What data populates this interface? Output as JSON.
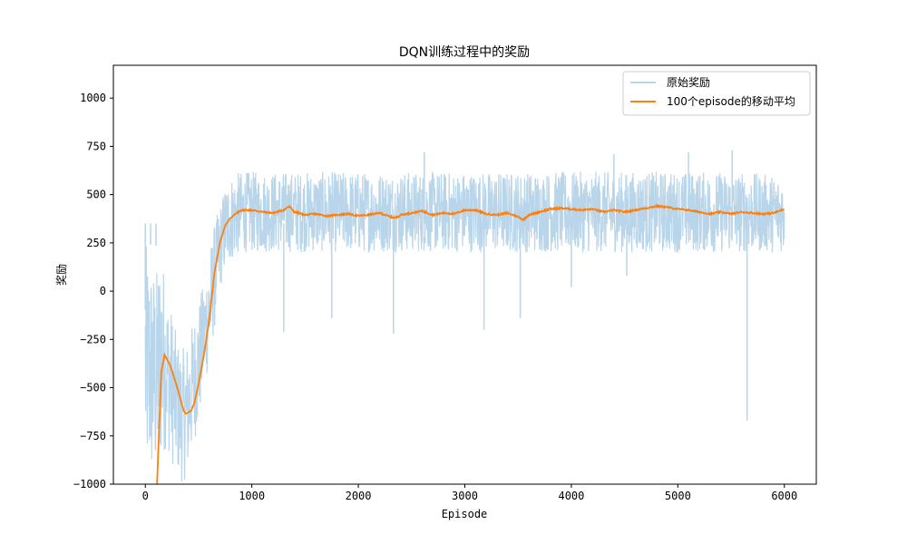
{
  "chart_data": {
    "type": "line",
    "title": "DQN训练过程中的奖励",
    "xlabel": "Episode",
    "ylabel": "奖励",
    "xlim": [
      -300,
      6300
    ],
    "ylim": [
      -1000,
      1170
    ],
    "xticks": [
      0,
      1000,
      2000,
      3000,
      4000,
      5000,
      6000
    ],
    "yticks": [
      -1000,
      -750,
      -500,
      -250,
      0,
      250,
      500,
      750,
      1000
    ],
    "xtick_labels": [
      "0",
      "1000",
      "2000",
      "3000",
      "4000",
      "5000",
      "6000"
    ],
    "ytick_labels": [
      "−1000",
      "−750",
      "−500",
      "−250",
      "0",
      "250",
      "500",
      "750",
      "1000"
    ],
    "legend_position": "upper right",
    "series": [
      {
        "name": "原始奖励",
        "color": "#b9d5ea",
        "description_note": "noisy per-episode reward",
        "x": [
          0,
          100,
          150,
          200,
          250,
          300,
          350,
          400,
          450,
          500,
          550,
          600,
          650,
          700,
          750,
          800,
          900,
          1000,
          1500,
          2000,
          2500,
          3000,
          3500,
          4000,
          4500,
          5000,
          5500,
          6000
        ],
        "band_low": [
          -1000,
          -1000,
          -900,
          -800,
          -900,
          -950,
          -1000,
          -950,
          -800,
          -700,
          -500,
          -400,
          -200,
          0,
          100,
          150,
          200,
          200,
          200,
          200,
          200,
          200,
          200,
          200,
          200,
          200,
          200,
          200
        ],
        "band_high": [
          250,
          100,
          250,
          0,
          -100,
          -250,
          -300,
          -250,
          -150,
          -50,
          50,
          200,
          350,
          450,
          550,
          600,
          620,
          620,
          620,
          620,
          620,
          620,
          620,
          620,
          620,
          620,
          620,
          600
        ],
        "spikes": [
          {
            "x": 0,
            "y": -100
          },
          {
            "x": 50,
            "y": 240
          },
          {
            "x": 100,
            "y": 235
          },
          {
            "x": 1300,
            "y": -210
          },
          {
            "x": 1750,
            "y": -140
          },
          {
            "x": 2330,
            "y": -220
          },
          {
            "x": 3180,
            "y": -200
          },
          {
            "x": 3520,
            "y": -140
          },
          {
            "x": 4000,
            "y": 20
          },
          {
            "x": 4520,
            "y": 80
          },
          {
            "x": 5650,
            "y": -670
          },
          {
            "x": 2620,
            "y": 720
          },
          {
            "x": 4400,
            "y": 710
          },
          {
            "x": 5100,
            "y": 720
          },
          {
            "x": 5510,
            "y": 730
          }
        ]
      },
      {
        "name": "100个episode的移动平均",
        "color": "#ff7f0e",
        "x": [
          110,
          130,
          150,
          170,
          180,
          200,
          230,
          260,
          300,
          330,
          360,
          380,
          400,
          430,
          460,
          500,
          550,
          600,
          650,
          700,
          750,
          800,
          850,
          900,
          1000,
          1100,
          1200,
          1300,
          1350,
          1400,
          1500,
          1600,
          1700,
          1800,
          1900,
          2000,
          2100,
          2200,
          2300,
          2350,
          2400,
          2500,
          2600,
          2700,
          2800,
          2900,
          3000,
          3100,
          3200,
          3300,
          3400,
          3500,
          3550,
          3600,
          3700,
          3800,
          3900,
          4000,
          4100,
          4200,
          4300,
          4400,
          4500,
          4600,
          4700,
          4800,
          4900,
          5000,
          5100,
          5200,
          5300,
          5400,
          5500,
          5600,
          5700,
          5800,
          5900,
          6000
        ],
        "y": [
          -1000,
          -700,
          -420,
          -360,
          -330,
          -350,
          -380,
          -430,
          -500,
          -560,
          -620,
          -635,
          -630,
          -620,
          -580,
          -480,
          -330,
          -150,
          100,
          250,
          340,
          380,
          400,
          420,
          420,
          410,
          405,
          420,
          440,
          410,
          395,
          400,
          390,
          395,
          400,
          390,
          395,
          405,
          385,
          380,
          395,
          405,
          415,
          395,
          405,
          400,
          420,
          420,
          400,
          395,
          405,
          385,
          370,
          395,
          410,
          425,
          430,
          425,
          420,
          425,
          410,
          420,
          410,
          420,
          430,
          440,
          435,
          425,
          420,
          410,
          400,
          410,
          400,
          410,
          405,
          400,
          405,
          425
        ]
      }
    ]
  }
}
